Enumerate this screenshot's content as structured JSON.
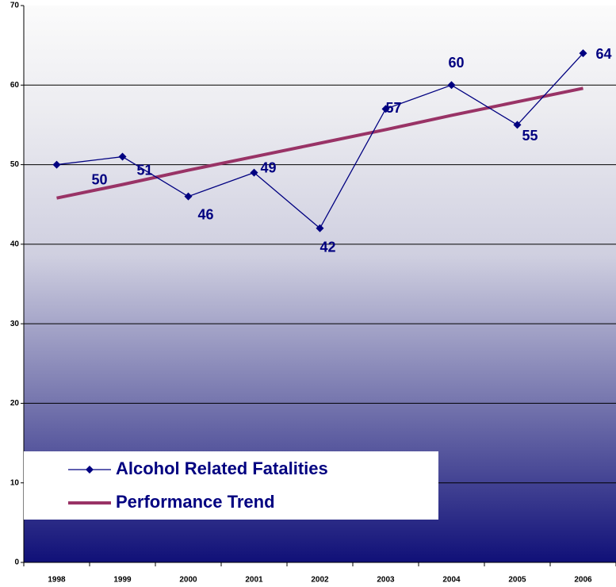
{
  "chart_data": {
    "type": "line",
    "categories": [
      "1998",
      "1999",
      "2000",
      "2001",
      "2002",
      "2003",
      "2004",
      "2005",
      "2006"
    ],
    "series": [
      {
        "name": "Alcohol Related Fatalities",
        "color": "#000080",
        "values": [
          50,
          51,
          46,
          49,
          42,
          57,
          60,
          55,
          64
        ]
      },
      {
        "name": "Performance Trend",
        "color": "#993366",
        "values": [
          45.8,
          47.5,
          49.3,
          51.0,
          52.7,
          54.4,
          56.2,
          57.9,
          59.6
        ]
      }
    ],
    "ylim": [
      0,
      70
    ],
    "yticks": [
      0,
      10,
      20,
      30,
      40,
      50,
      60,
      70
    ],
    "grid": true,
    "legend": "lower left"
  }
}
